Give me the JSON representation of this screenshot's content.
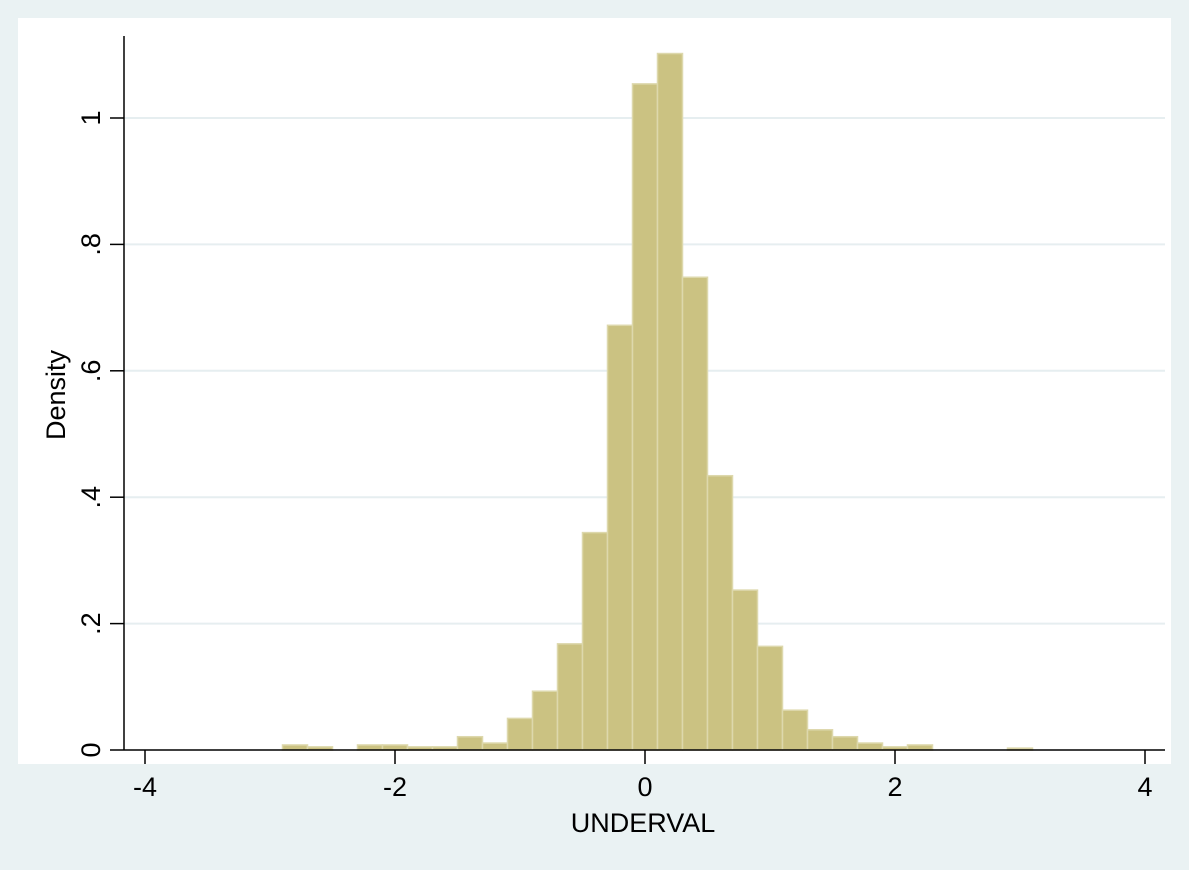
{
  "chart_data": {
    "type": "bar",
    "subtype": "histogram",
    "title": "",
    "xlabel": "UNDERVAL",
    "ylabel": "Density",
    "xlim": [
      -4.05,
      4.35
    ],
    "ylim": [
      0,
      1.1
    ],
    "xticks": [
      -4,
      -2,
      0,
      2,
      4
    ],
    "xtick_labels": [
      "-4",
      "-2",
      "0",
      "2",
      "4"
    ],
    "yticks": [
      0,
      0.2,
      0.4,
      0.6,
      0.8,
      1
    ],
    "ytick_labels": [
      "0",
      ".2",
      ".4",
      ".6",
      ".8",
      "1"
    ],
    "grid": true,
    "grid_axis": "y",
    "bin_width": 0.2,
    "bins": [
      {
        "x0": -2.9,
        "x1": -2.7,
        "density": 0.008
      },
      {
        "x0": -2.7,
        "x1": -2.5,
        "density": 0.005
      },
      {
        "x0": -2.3,
        "x1": -2.1,
        "density": 0.008
      },
      {
        "x0": -2.1,
        "x1": -1.9,
        "density": 0.008
      },
      {
        "x0": -1.9,
        "x1": -1.7,
        "density": 0.005
      },
      {
        "x0": -1.7,
        "x1": -1.5,
        "density": 0.005
      },
      {
        "x0": -1.5,
        "x1": -1.3,
        "density": 0.021
      },
      {
        "x0": -1.3,
        "x1": -1.1,
        "density": 0.011
      },
      {
        "x0": -1.1,
        "x1": -0.9,
        "density": 0.05
      },
      {
        "x0": -0.9,
        "x1": -0.7,
        "density": 0.093
      },
      {
        "x0": -0.7,
        "x1": -0.5,
        "density": 0.168
      },
      {
        "x0": -0.5,
        "x1": -0.3,
        "density": 0.344
      },
      {
        "x0": -0.3,
        "x1": -0.1,
        "density": 0.672
      },
      {
        "x0": -0.1,
        "x1": 0.1,
        "density": 1.054
      },
      {
        "x0": 0.1,
        "x1": 0.3,
        "density": 1.102
      },
      {
        "x0": 0.3,
        "x1": 0.5,
        "density": 0.748
      },
      {
        "x0": 0.5,
        "x1": 0.7,
        "density": 0.434
      },
      {
        "x0": 0.7,
        "x1": 0.9,
        "density": 0.253
      },
      {
        "x0": 0.9,
        "x1": 1.1,
        "density": 0.164
      },
      {
        "x0": 1.1,
        "x1": 1.3,
        "density": 0.063
      },
      {
        "x0": 1.3,
        "x1": 1.5,
        "density": 0.032
      },
      {
        "x0": 1.5,
        "x1": 1.7,
        "density": 0.021
      },
      {
        "x0": 1.7,
        "x1": 1.9,
        "density": 0.011
      },
      {
        "x0": 1.9,
        "x1": 2.1,
        "density": 0.005
      },
      {
        "x0": 2.1,
        "x1": 2.3,
        "density": 0.008
      },
      {
        "x0": 2.9,
        "x1": 3.1,
        "density": 0.003
      }
    ],
    "colors": {
      "background": "#eaf2f3",
      "plot_background": "#ffffff",
      "bar_fill": "#cbc282",
      "bar_stroke": "#ddd8ac",
      "grid": "#e6eef0",
      "axis": "#000000"
    }
  }
}
